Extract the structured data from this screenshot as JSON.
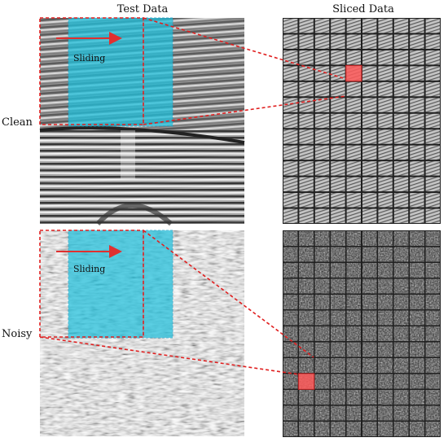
{
  "headers": {
    "test_data": "Test Data",
    "sliced_data": "Sliced Data"
  },
  "rows": [
    {
      "label": "Clean",
      "sliding_label": "Sliding"
    },
    {
      "label": "Noisy",
      "sliding_label": "Sliding"
    }
  ],
  "grid": {
    "rows": 13,
    "cols": 10
  },
  "highlight_cells": [
    {
      "row": 3,
      "col": 4
    },
    {
      "row": 9,
      "col": 1
    }
  ],
  "colors": {
    "sliding_window": "#20c0dc",
    "dashed_red": "#e02020",
    "highlight_cell": "#ff5a5a",
    "arrow": "#e03030"
  }
}
